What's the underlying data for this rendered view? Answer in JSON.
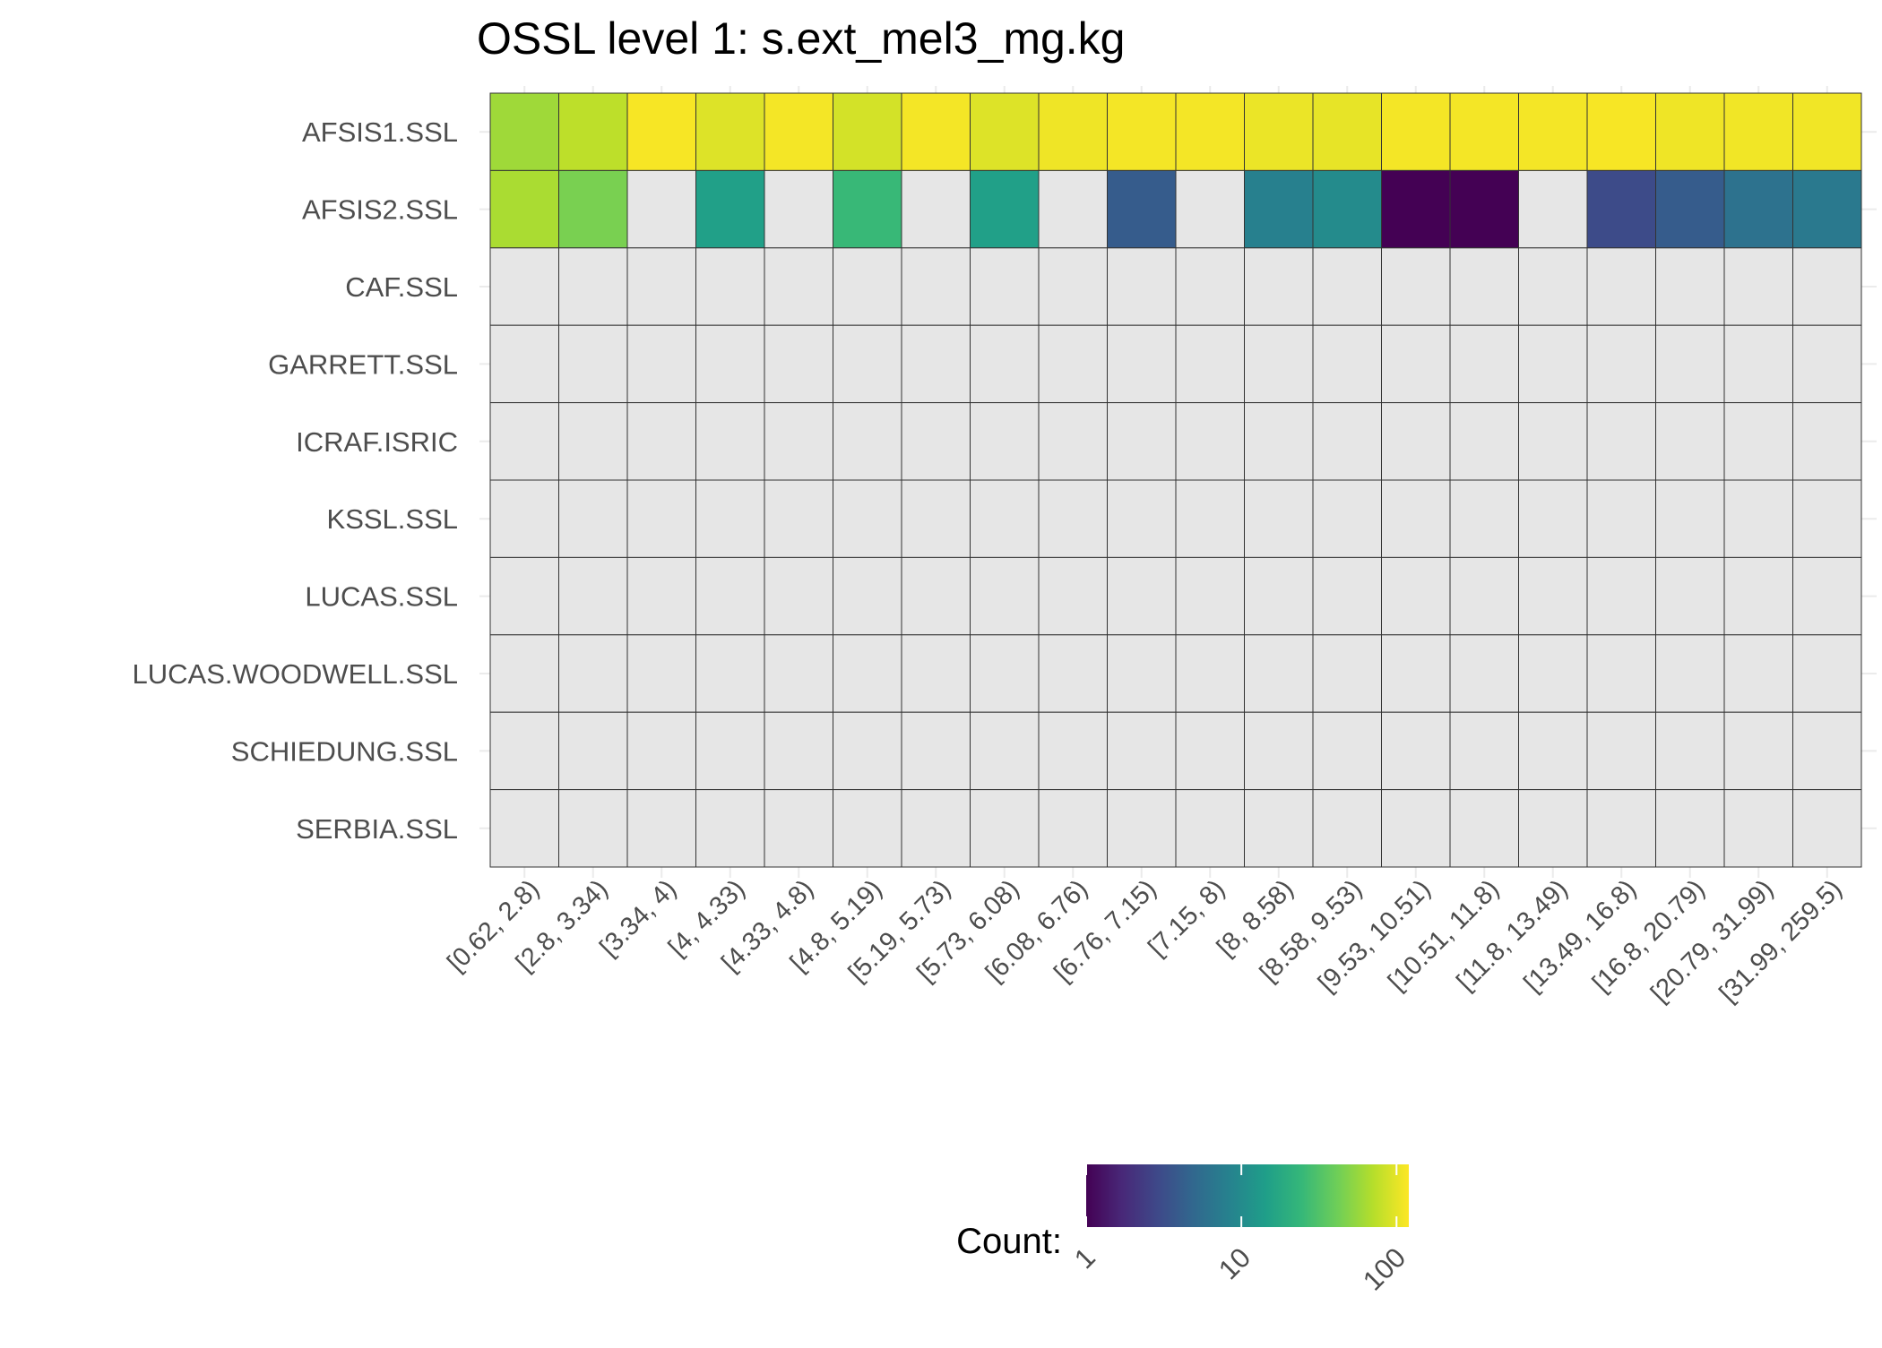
{
  "chart_data": {
    "type": "heatmap",
    "title": "OSSL level 1: s.ext_mel3_mg.kg",
    "xlabel": "",
    "ylabel": "",
    "rows": [
      "AFSIS1.SSL",
      "AFSIS2.SSL",
      "CAF.SSL",
      "GARRETT.SSL",
      "ICRAF.ISRIC",
      "KSSL.SSL",
      "LUCAS.SSL",
      "LUCAS.WOODWELL.SSL",
      "SCHIEDUNG.SSL",
      "SERBIA.SSL"
    ],
    "columns": [
      "[0.62, 2.8)",
      "[2.8, 3.34)",
      "[3.34, 4)",
      "[4, 4.33)",
      "[4.33, 4.8)",
      "[4.8, 5.19)",
      "[5.19, 5.73)",
      "[5.73, 6.08)",
      "[6.08, 6.76)",
      "[6.76, 7.15)",
      "[7.15, 8)",
      "[8, 8.58)",
      "[8.58, 9.53)",
      "[9.53, 10.51)",
      "[10.51, 11.8)",
      "[11.8, 13.49)",
      "[13.49, 16.8)",
      "[16.8, 20.79)",
      "[20.79, 31.99)",
      "[31.99, 259.5)"
    ],
    "values": [
      [
        60,
        75,
        115,
        95,
        112,
        88,
        112,
        95,
        108,
        112,
        112,
        105,
        102,
        112,
        112,
        112,
        115,
        108,
        110,
        110
      ],
      [
        65,
        45,
        null,
        15,
        null,
        25,
        null,
        15,
        null,
        4,
        null,
        8,
        10,
        1,
        1,
        null,
        3,
        4,
        6,
        7
      ],
      [
        null,
        null,
        null,
        null,
        null,
        null,
        null,
        null,
        null,
        null,
        null,
        null,
        null,
        null,
        null,
        null,
        null,
        null,
        null,
        null
      ],
      [
        null,
        null,
        null,
        null,
        null,
        null,
        null,
        null,
        null,
        null,
        null,
        null,
        null,
        null,
        null,
        null,
        null,
        null,
        null,
        null
      ],
      [
        null,
        null,
        null,
        null,
        null,
        null,
        null,
        null,
        null,
        null,
        null,
        null,
        null,
        null,
        null,
        null,
        null,
        null,
        null,
        null
      ],
      [
        null,
        null,
        null,
        null,
        null,
        null,
        null,
        null,
        null,
        null,
        null,
        null,
        null,
        null,
        null,
        null,
        null,
        null,
        null,
        null
      ],
      [
        null,
        null,
        null,
        null,
        null,
        null,
        null,
        null,
        null,
        null,
        null,
        null,
        null,
        null,
        null,
        null,
        null,
        null,
        null,
        null
      ],
      [
        null,
        null,
        null,
        null,
        null,
        null,
        null,
        null,
        null,
        null,
        null,
        null,
        null,
        null,
        null,
        null,
        null,
        null,
        null,
        null
      ],
      [
        null,
        null,
        null,
        null,
        null,
        null,
        null,
        null,
        null,
        null,
        null,
        null,
        null,
        null,
        null,
        null,
        null,
        null,
        null,
        null
      ],
      [
        null,
        null,
        null,
        null,
        null,
        null,
        null,
        null,
        null,
        null,
        null,
        null,
        null,
        null,
        null,
        null,
        null,
        null,
        null,
        null
      ]
    ],
    "missing_color": "#e6e6e6",
    "color_scale": {
      "name": "viridis",
      "log": true,
      "domain": [
        1,
        120
      ],
      "stops": [
        "#440154",
        "#482878",
        "#3e4989",
        "#31688e",
        "#26828e",
        "#1f9e89",
        "#35b779",
        "#6ece58",
        "#b5de2b",
        "#fde725"
      ]
    },
    "legend": {
      "title": "Count:",
      "ticks": [
        "1",
        "10",
        "100"
      ],
      "tick_values": [
        1,
        10,
        100
      ],
      "placement": "bottom"
    },
    "grid": true
  }
}
